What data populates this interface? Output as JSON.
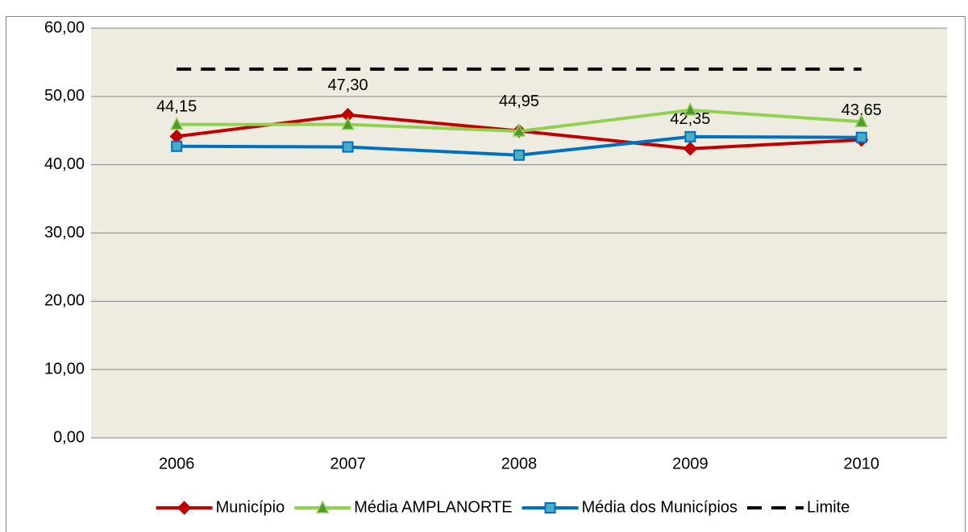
{
  "chart_data": {
    "type": "line",
    "categories": [
      "2006",
      "2007",
      "2008",
      "2009",
      "2010"
    ],
    "series": [
      {
        "name": "Município",
        "color": "#c00000",
        "marker": "diamond",
        "values": [
          44.15,
          47.3,
          44.95,
          42.35,
          43.65
        ],
        "value_labels": [
          "44,15",
          "47,30",
          "44,95",
          "42,35",
          "43,65"
        ]
      },
      {
        "name": "Média AMPLANORTE",
        "color": "#92d050",
        "marker": "triangle",
        "values": [
          45.9,
          45.9,
          44.9,
          48.0,
          46.3
        ]
      },
      {
        "name": "Média dos Municípios",
        "color": "#0070c0",
        "marker": "square",
        "values": [
          42.7,
          42.6,
          41.4,
          44.1,
          44.0
        ]
      },
      {
        "name": "Limite",
        "color": "#000000",
        "dashed": true,
        "values": [
          54,
          54,
          54,
          54,
          54
        ]
      }
    ],
    "ylim": [
      0,
      60
    ],
    "yticks": [
      {
        "value": 0,
        "label": "0,00"
      },
      {
        "value": 10,
        "label": "10,00"
      },
      {
        "value": 20,
        "label": "20,00"
      },
      {
        "value": 30,
        "label": "30,00"
      },
      {
        "value": 40,
        "label": "40,00"
      },
      {
        "value": 50,
        "label": "50,00"
      },
      {
        "value": 60,
        "label": "60,00"
      }
    ],
    "grid": true,
    "legend": "bottom"
  }
}
